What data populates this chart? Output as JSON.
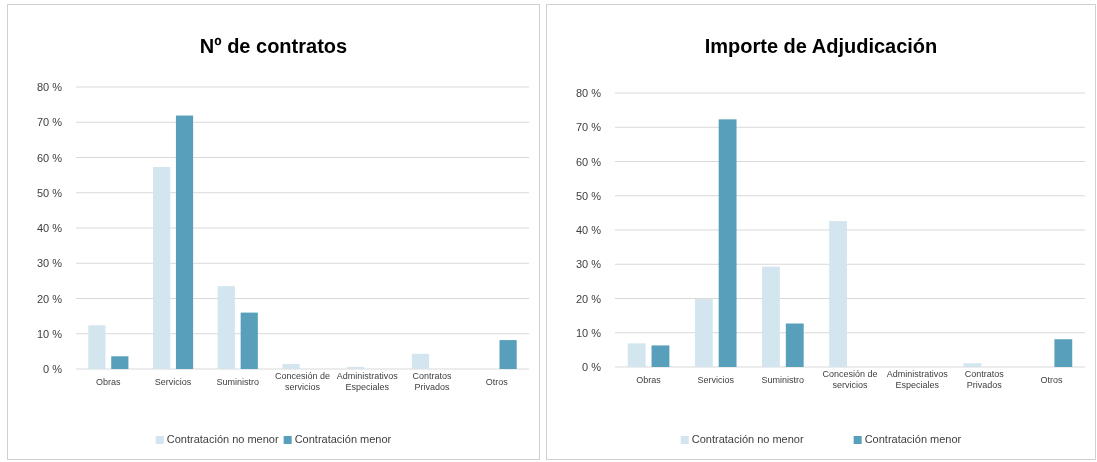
{
  "chart_data": [
    {
      "type": "bar",
      "title": "Nº de contratos",
      "categories": [
        "Obras",
        "Servicios",
        "Suministro",
        "Concesión de servicios",
        "Administrativos Especiales",
        "Contratos Privados",
        "Otros"
      ],
      "series": [
        {
          "name": "Contratación no menor",
          "color": "#d3e5ee",
          "values": [
            12.4,
            57.3,
            23.5,
            1.4,
            0.6,
            4.3,
            0
          ]
        },
        {
          "name": "Contratación menor",
          "color": "#579fba",
          "values": [
            3.6,
            71.9,
            16.0,
            0,
            0,
            0,
            8.2
          ]
        }
      ],
      "ylim": [
        0,
        80
      ],
      "yticks": [
        {
          "value": 0,
          "label": "0 %"
        },
        {
          "value": 10,
          "label": "10 %"
        },
        {
          "value": 20,
          "label": "20 %"
        },
        {
          "value": 30,
          "label": "30 %"
        },
        {
          "value": 40,
          "label": "40 %"
        },
        {
          "value": 50,
          "label": "50 %"
        },
        {
          "value": 60,
          "label": "60 %"
        },
        {
          "value": 70,
          "label": "70 %"
        },
        {
          "value": 80,
          "label": "80 %"
        }
      ],
      "grid": "y",
      "legend": "bottom"
    },
    {
      "type": "bar",
      "title": "Importe de Adjudicación",
      "categories": [
        "Obras",
        "Servicios",
        "Suministro",
        "Concesión de servicios",
        "Administrativos Especiales",
        "Contratos Privados",
        "Otros"
      ],
      "series": [
        {
          "name": "Contratación no menor",
          "color": "#d3e5ee",
          "values": [
            6.9,
            19.8,
            29.3,
            42.6,
            0,
            1.1,
            0
          ]
        },
        {
          "name": "Contratación menor",
          "color": "#579fba",
          "values": [
            6.3,
            72.3,
            12.7,
            0,
            0,
            0,
            8.1
          ]
        }
      ],
      "ylim": [
        0,
        80
      ],
      "yticks": [
        {
          "value": 0,
          "label": "0 %"
        },
        {
          "value": 10,
          "label": "10 %"
        },
        {
          "value": 20,
          "label": "20 %"
        },
        {
          "value": 30,
          "label": "30 %"
        },
        {
          "value": 40,
          "label": "40 %"
        },
        {
          "value": 50,
          "label": "50 %"
        },
        {
          "value": 60,
          "label": "60 %"
        },
        {
          "value": 70,
          "label": "70 %"
        },
        {
          "value": 80,
          "label": "80 %"
        }
      ],
      "grid": "y",
      "legend": "bottom"
    }
  ]
}
